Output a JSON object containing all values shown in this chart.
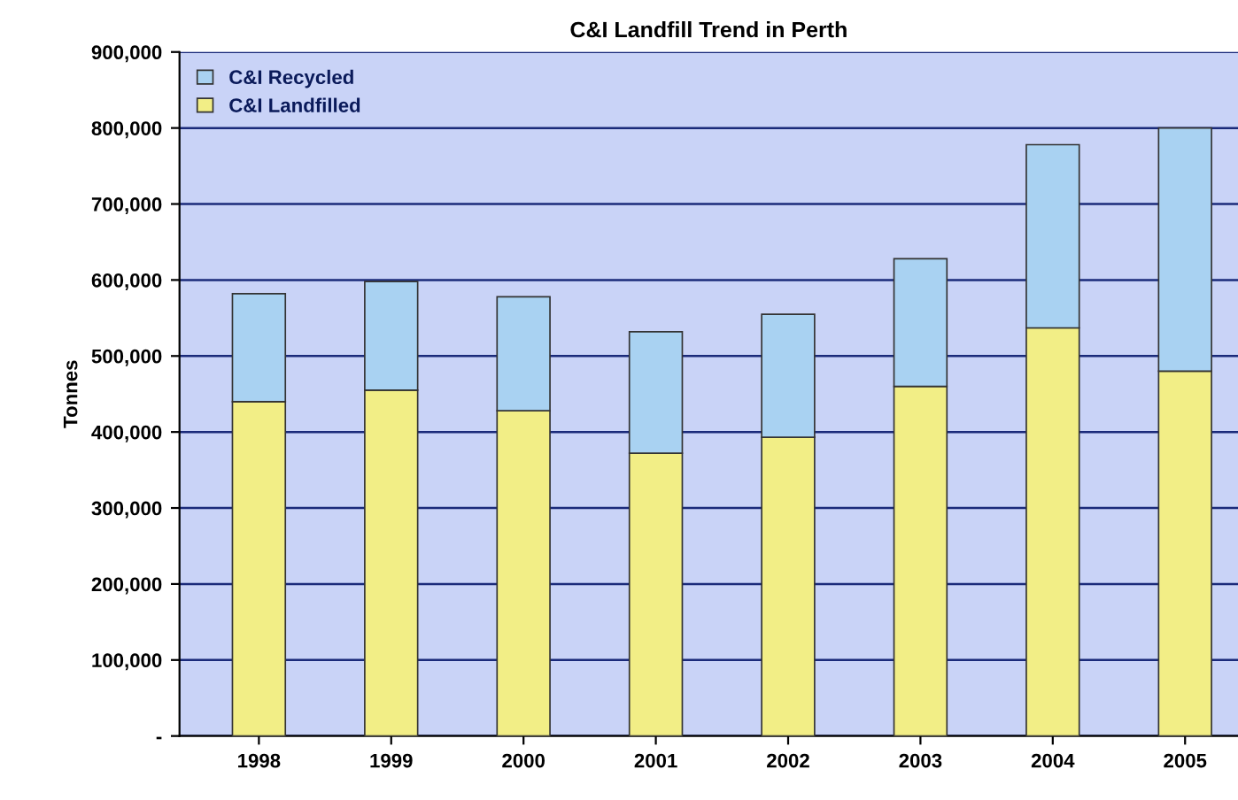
{
  "chart_data": {
    "type": "bar",
    "title": "C&I Landfill Trend in Perth",
    "ylabel": "Tonnes",
    "categories": [
      "1998",
      "1999",
      "2000",
      "2001",
      "2002",
      "2003",
      "2004",
      "2005"
    ],
    "stacked": true,
    "series": [
      {
        "name": "C&I Landfilled",
        "color": "#f2ee86",
        "values": [
          440000,
          455000,
          428000,
          372000,
          393000,
          460000,
          537000,
          480000
        ]
      },
      {
        "name": "C&I Recycled",
        "color": "#a9d2f2",
        "values": [
          142000,
          143000,
          150000,
          160000,
          162000,
          168000,
          241000,
          320000
        ]
      }
    ],
    "ylim": [
      0,
      900000
    ],
    "yticks": [
      {
        "value": 0,
        "label": "-"
      },
      {
        "value": 100000,
        "label": "100,000"
      },
      {
        "value": 200000,
        "label": "200,000"
      },
      {
        "value": 300000,
        "label": "300,000"
      },
      {
        "value": 400000,
        "label": "400,000"
      },
      {
        "value": 500000,
        "label": "500,000"
      },
      {
        "value": 600000,
        "label": "600,000"
      },
      {
        "value": 700000,
        "label": "700,000"
      },
      {
        "value": 800000,
        "label": "800,000"
      },
      {
        "value": 900000,
        "label": "900,000"
      }
    ],
    "grid": "y",
    "legend": "top left"
  }
}
